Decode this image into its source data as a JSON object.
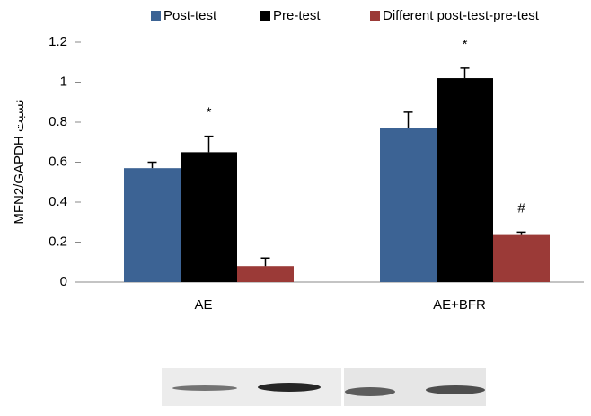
{
  "chart_data": {
    "type": "bar",
    "categories": [
      "AE",
      "AE+BFR"
    ],
    "series": [
      {
        "name": "Post-test",
        "color": "#3c6394",
        "values": [
          0.57,
          0.77
        ],
        "errors": [
          0.03,
          0.08
        ]
      },
      {
        "name": "Pre-test",
        "color": "#000000",
        "values": [
          0.65,
          1.02
        ],
        "errors": [
          0.08,
          0.05
        ]
      },
      {
        "name": "Different post-test-pre-test",
        "color": "#9b3a37",
        "values": [
          0.08,
          0.24
        ],
        "errors": [
          0.04,
          0.01
        ]
      }
    ],
    "ylabel": "MFN2/GAPDH نسبت",
    "ylim": [
      0,
      1.2
    ],
    "yticks": [
      0,
      0.2,
      0.4,
      0.6,
      0.8,
      1,
      1.2
    ],
    "annotations": [
      "*",
      "*",
      "#"
    ],
    "legend": "top"
  }
}
